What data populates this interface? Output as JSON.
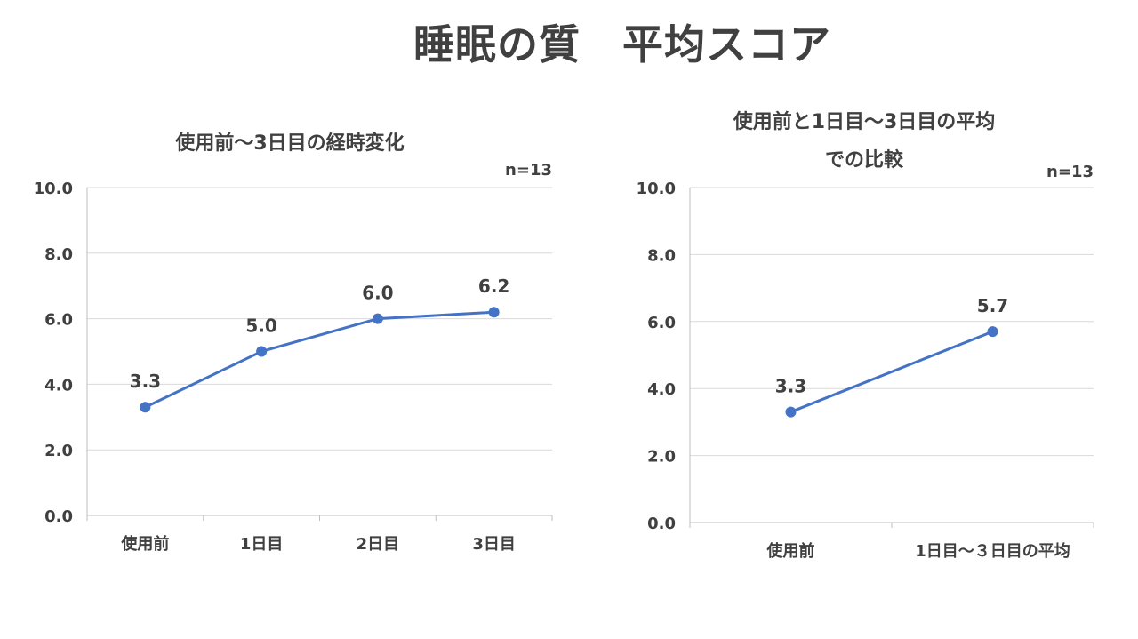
{
  "main_title": "睡眠の質　平均スコア",
  "chart_data": [
    {
      "type": "line",
      "title": [
        "使用前～3日目の経時変化"
      ],
      "n_label": "n=13",
      "categories": [
        "使用前",
        "1日目",
        "2日目",
        "3日目"
      ],
      "values": [
        3.3,
        5.0,
        6.0,
        6.2
      ],
      "value_labels": [
        "3.3",
        "5.0",
        "6.0",
        "6.2"
      ],
      "yticks": [
        "0.0",
        "2.0",
        "4.0",
        "6.0",
        "8.0",
        "10.0"
      ],
      "ylim": [
        0,
        10
      ],
      "xlabel": "",
      "ylabel": "",
      "color": "#4472c4"
    },
    {
      "type": "line",
      "title": [
        "使用前と1日目～3日目の平均",
        "での比較"
      ],
      "n_label": "n=13",
      "categories": [
        "使用前",
        "1日目～３日目の平均"
      ],
      "values": [
        3.3,
        5.7
      ],
      "value_labels": [
        "3.3",
        "5.7"
      ],
      "yticks": [
        "0.0",
        "2.0",
        "4.0",
        "6.0",
        "8.0",
        "10.0"
      ],
      "ylim": [
        0,
        10
      ],
      "xlabel": "",
      "ylabel": "",
      "color": "#4472c4"
    }
  ]
}
